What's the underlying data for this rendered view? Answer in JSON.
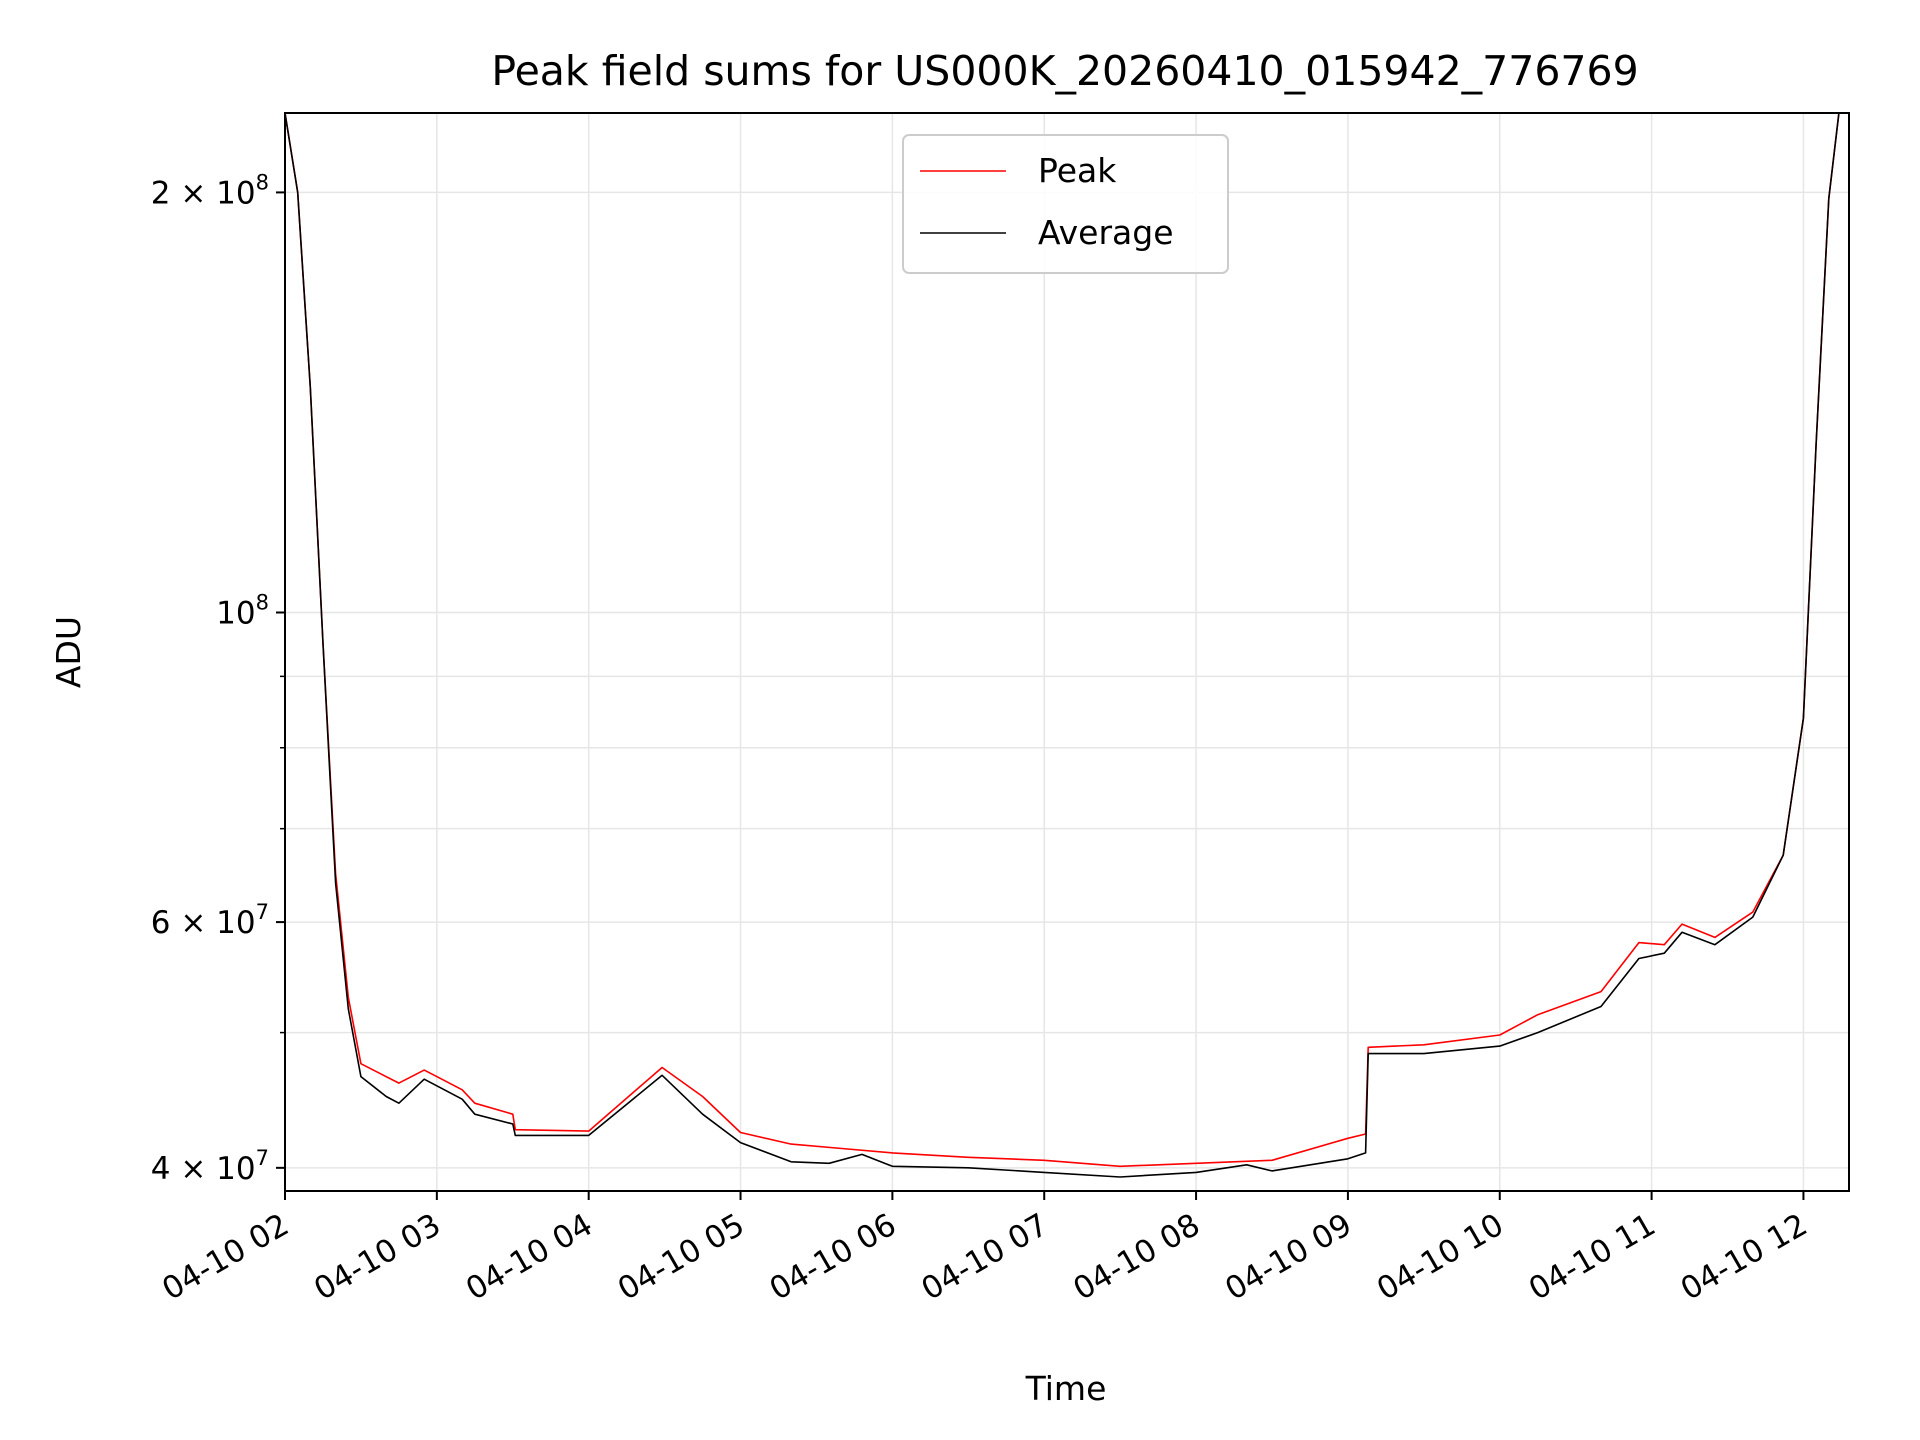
{
  "chart_data": {
    "type": "line",
    "title": "Peak field sums for US000K_20260410_015942_776769",
    "xlabel": "Time",
    "ylabel": "ADU",
    "yscale": "log",
    "grid": true,
    "legend_position": "upper-center",
    "x_ticks": [
      "04-10 02",
      "04-10 03",
      "04-10 04",
      "04-10 05",
      "04-10 06",
      "04-10 07",
      "04-10 08",
      "04-10 09",
      "04-10 10",
      "04-10 11",
      "04-10 12"
    ],
    "x_range": [
      "2026-04-10 02:00",
      "2026-04-10 12:18"
    ],
    "ylim": [
      38500000,
      228000000
    ],
    "y_major_ticks": [
      {
        "value": 40000000,
        "mantissa": "4",
        "exp": "7"
      },
      {
        "value": 60000000,
        "mantissa": "6",
        "exp": "7"
      },
      {
        "value": 100000000,
        "mantissa": "",
        "exp": "8"
      },
      {
        "value": 200000000,
        "mantissa": "2",
        "exp": "8"
      }
    ],
    "y_minor_ticks": [
      50000000,
      70000000,
      80000000,
      90000000
    ],
    "series": [
      {
        "name": "Peak",
        "color": "#ff0000",
        "points": [
          [
            "2026-04-10 02:00",
            228000000
          ],
          [
            "2026-04-10 02:05",
            200000000
          ],
          [
            "2026-04-10 02:10",
            145000000
          ],
          [
            "2026-04-10 02:15",
            95000000
          ],
          [
            "2026-04-10 02:20",
            65000000
          ],
          [
            "2026-04-10 02:25",
            53000000
          ],
          [
            "2026-04-10 02:30",
            47500000
          ],
          [
            "2026-04-10 02:45",
            46000000
          ],
          [
            "2026-04-10 02:55",
            47000000
          ],
          [
            "2026-04-10 03:00",
            46500000
          ],
          [
            "2026-04-10 03:10",
            45500000
          ],
          [
            "2026-04-10 03:15",
            44500000
          ],
          [
            "2026-04-10 03:30",
            43700000
          ],
          [
            "2026-04-10 03:31",
            42600000
          ],
          [
            "2026-04-10 04:00",
            42500000
          ],
          [
            "2026-04-10 04:29",
            47200000
          ],
          [
            "2026-04-10 04:45",
            45000000
          ],
          [
            "2026-04-10 05:00",
            42400000
          ],
          [
            "2026-04-10 05:20",
            41600000
          ],
          [
            "2026-04-10 05:40",
            41300000
          ],
          [
            "2026-04-10 06:00",
            41000000
          ],
          [
            "2026-04-10 06:30",
            40700000
          ],
          [
            "2026-04-10 07:00",
            40500000
          ],
          [
            "2026-04-10 07:30",
            40100000
          ],
          [
            "2026-04-10 08:00",
            40300000
          ],
          [
            "2026-04-10 08:30",
            40500000
          ],
          [
            "2026-04-10 09:00",
            42000000
          ],
          [
            "2026-04-10 09:07",
            42300000
          ],
          [
            "2026-04-10 09:08",
            48800000
          ],
          [
            "2026-04-10 09:30",
            49000000
          ],
          [
            "2026-04-10 10:00",
            49800000
          ],
          [
            "2026-04-10 10:15",
            51500000
          ],
          [
            "2026-04-10 10:40",
            53500000
          ],
          [
            "2026-04-10 10:55",
            58000000
          ],
          [
            "2026-04-10 11:05",
            57800000
          ],
          [
            "2026-04-10 11:12",
            59800000
          ],
          [
            "2026-04-10 11:25",
            58500000
          ],
          [
            "2026-04-10 11:40",
            61000000
          ],
          [
            "2026-04-10 11:52",
            67000000
          ],
          [
            "2026-04-10 12:00",
            84000000
          ],
          [
            "2026-04-10 12:05",
            132000000
          ],
          [
            "2026-04-10 12:10",
            198000000
          ],
          [
            "2026-04-10 12:14",
            228000000
          ]
        ]
      },
      {
        "name": "Average",
        "color": "#000000",
        "points": [
          [
            "2026-04-10 02:00",
            228000000
          ],
          [
            "2026-04-10 02:05",
            200000000
          ],
          [
            "2026-04-10 02:10",
            145000000
          ],
          [
            "2026-04-10 02:15",
            95000000
          ],
          [
            "2026-04-10 02:20",
            64000000
          ],
          [
            "2026-04-10 02:25",
            52000000
          ],
          [
            "2026-04-10 02:30",
            46500000
          ],
          [
            "2026-04-10 02:40",
            45000000
          ],
          [
            "2026-04-10 02:45",
            44500000
          ],
          [
            "2026-04-10 02:55",
            46300000
          ],
          [
            "2026-04-10 03:00",
            45800000
          ],
          [
            "2026-04-10 03:10",
            44800000
          ],
          [
            "2026-04-10 03:15",
            43700000
          ],
          [
            "2026-04-10 03:30",
            43000000
          ],
          [
            "2026-04-10 03:31",
            42200000
          ],
          [
            "2026-04-10 04:00",
            42200000
          ],
          [
            "2026-04-10 04:29",
            46600000
          ],
          [
            "2026-04-10 04:45",
            43700000
          ],
          [
            "2026-04-10 05:00",
            41700000
          ],
          [
            "2026-04-10 05:20",
            40400000
          ],
          [
            "2026-04-10 05:35",
            40300000
          ],
          [
            "2026-04-10 05:48",
            40900000
          ],
          [
            "2026-04-10 06:00",
            40100000
          ],
          [
            "2026-04-10 06:30",
            40000000
          ],
          [
            "2026-04-10 07:00",
            39700000
          ],
          [
            "2026-04-10 07:30",
            39400000
          ],
          [
            "2026-04-10 08:00",
            39700000
          ],
          [
            "2026-04-10 08:20",
            40200000
          ],
          [
            "2026-04-10 08:30",
            39800000
          ],
          [
            "2026-04-10 09:00",
            40600000
          ],
          [
            "2026-04-10 09:07",
            41000000
          ],
          [
            "2026-04-10 09:08",
            48300000
          ],
          [
            "2026-04-10 09:30",
            48300000
          ],
          [
            "2026-04-10 10:00",
            48900000
          ],
          [
            "2026-04-10 10:15",
            50000000
          ],
          [
            "2026-04-10 10:40",
            52200000
          ],
          [
            "2026-04-10 10:55",
            56500000
          ],
          [
            "2026-04-10 11:05",
            57000000
          ],
          [
            "2026-04-10 11:12",
            59000000
          ],
          [
            "2026-04-10 11:25",
            57800000
          ],
          [
            "2026-04-10 11:40",
            60500000
          ],
          [
            "2026-04-10 11:52",
            67000000
          ],
          [
            "2026-04-10 12:00",
            84000000
          ],
          [
            "2026-04-10 12:05",
            132000000
          ],
          [
            "2026-04-10 12:10",
            198000000
          ],
          [
            "2026-04-10 12:14",
            228000000
          ]
        ]
      }
    ]
  }
}
